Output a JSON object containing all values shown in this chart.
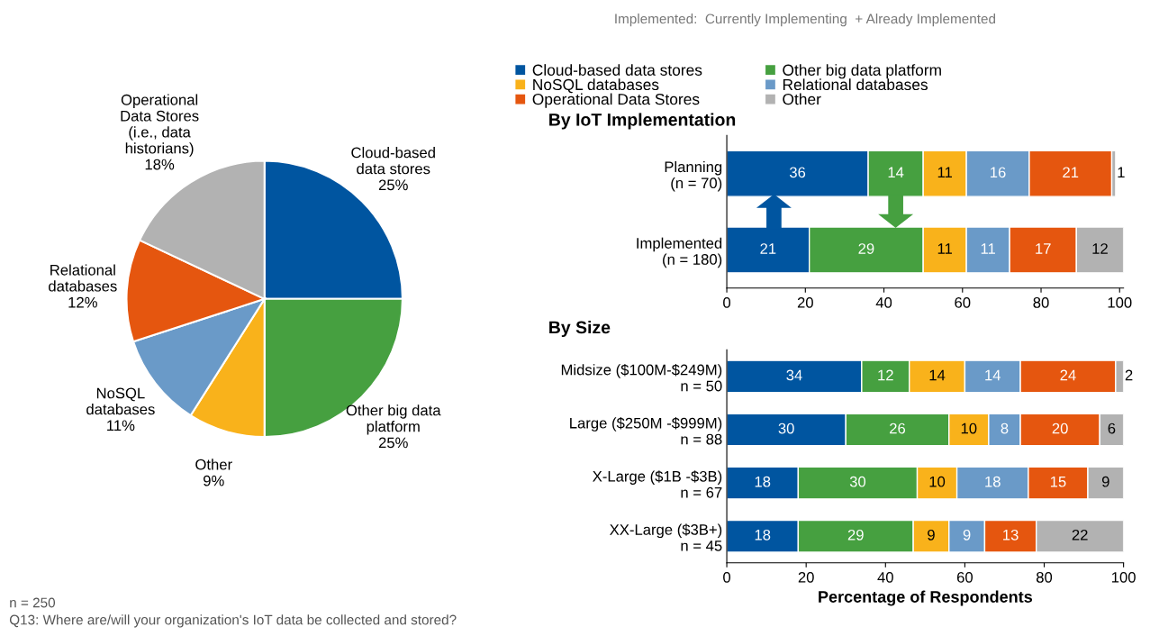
{
  "chart_data": [
    {
      "type": "pie",
      "categories": [
        "Cloud-based\ndata stores",
        "Other big data\nplatform",
        "Other",
        "NoSQL\ndatabases",
        "Relational\ndatabases",
        "Operational\nData Stores\n(i.e., data\nhistorians)"
      ],
      "values": [
        25,
        25,
        9,
        11,
        12,
        18
      ],
      "value_labels": [
        "25%",
        "25%",
        "9%",
        "11%",
        "12%",
        "18%"
      ],
      "colors": [
        "#0055a0",
        "#46a040",
        "#f9b21b",
        "#6a9ac8",
        "#e5560f",
        "#b2b2b2"
      ],
      "annotations": [
        "n = 250",
        "Q13: Where are/will your organization's IoT data be collected and stored?"
      ]
    },
    {
      "type": "bar",
      "orientation": "horizontal",
      "stacked": true,
      "title": "By IoT Implementation",
      "categories": [
        "Planning\n(n = 70)",
        "Implemented\n(n = 180)"
      ],
      "series": [
        {
          "name": "Cloud-based data stores",
          "color": "#0055a0",
          "values": [
            36,
            21
          ]
        },
        {
          "name": "Other big data platform",
          "color": "#46a040",
          "values": [
            14,
            29
          ]
        },
        {
          "name": "NoSQL databases",
          "color": "#f9b21b",
          "values": [
            11,
            11
          ]
        },
        {
          "name": "Relational databases",
          "color": "#6a9ac8",
          "values": [
            16,
            11
          ]
        },
        {
          "name": "Operational Data Stores",
          "color": "#e5560f",
          "values": [
            21,
            17
          ]
        },
        {
          "name": "Other",
          "color": "#b2b2b2",
          "values": [
            1,
            12
          ]
        }
      ],
      "xlim": [
        0,
        101
      ],
      "xticks": [
        0,
        20,
        40,
        60,
        80,
        100
      ],
      "data_labels": true,
      "legend": "top",
      "annotations": [
        "Implemented:  Currently Implementing  + Already Implemented"
      ]
    },
    {
      "type": "bar",
      "orientation": "horizontal",
      "stacked": true,
      "title": "By Size",
      "xlabel": "Percentage of Respondents",
      "categories": [
        "Midsize ($100M-$249M)\nn = 50",
        "Large ($250M -$999M)\nn = 88",
        "X-Large ($1B -$3B)\nn = 67",
        "XX-Large ($3B+)\nn = 45"
      ],
      "series": [
        {
          "color": "#0055a0",
          "values": [
            34,
            30,
            18,
            18
          ]
        },
        {
          "color": "#46a040",
          "values": [
            12,
            26,
            30,
            29
          ]
        },
        {
          "color": "#f9b21b",
          "values": [
            14,
            10,
            10,
            9
          ]
        },
        {
          "color": "#6a9ac8",
          "values": [
            14,
            8,
            18,
            9
          ]
        },
        {
          "color": "#e5560f",
          "values": [
            24,
            20,
            15,
            13
          ]
        },
        {
          "color": "#b2b2b2",
          "values": [
            2,
            6,
            9,
            22
          ]
        }
      ],
      "xlim": [
        0,
        100
      ],
      "xticks": [
        0,
        20,
        40,
        60,
        80,
        100
      ],
      "data_labels": true
    }
  ]
}
